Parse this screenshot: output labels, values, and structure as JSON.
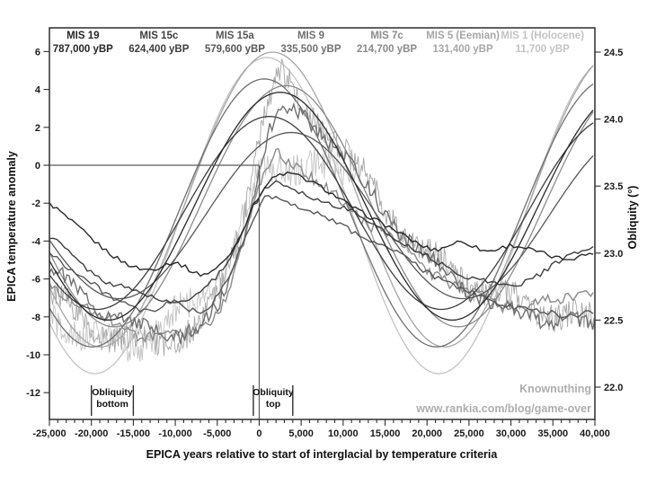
{
  "chart_data": {
    "type": "line",
    "title": "",
    "xlabel": "EPICA years relative to start of interglacial by temperature criteria",
    "ylabel_left": "EPICA temperature anomaly",
    "ylabel_right": "Obliquity (°)",
    "x_range": [
      -25000,
      40000
    ],
    "y_left_range": [
      -12,
      6
    ],
    "y_right_range": [
      22.0,
      24.5
    ],
    "x_minor_step": 1000,
    "grid": "off",
    "x_ticks": [
      {
        "v": -25000,
        "label": "-25,000"
      },
      {
        "v": -20000,
        "label": "-20,000"
      },
      {
        "v": -15000,
        "label": "-15,000"
      },
      {
        "v": -10000,
        "label": "-10,000"
      },
      {
        "v": -5000,
        "label": "-5,000"
      },
      {
        "v": 0,
        "label": "0"
      },
      {
        "v": 5000,
        "label": "5,000"
      },
      {
        "v": 10000,
        "label": "10,000"
      },
      {
        "v": 15000,
        "label": "15,000"
      },
      {
        "v": 20000,
        "label": "20,000"
      },
      {
        "v": 25000,
        "label": "25,000"
      },
      {
        "v": 30000,
        "label": "30,000"
      },
      {
        "v": 35000,
        "label": "35,000"
      },
      {
        "v": 40000,
        "label": "40,000"
      }
    ],
    "y_left_ticks": [
      {
        "v": 6,
        "label": "6"
      },
      {
        "v": 4,
        "label": "4"
      },
      {
        "v": 2,
        "label": "2"
      },
      {
        "v": 0,
        "label": "0"
      },
      {
        "v": -2,
        "label": "-2"
      },
      {
        "v": -4,
        "label": "-4"
      },
      {
        "v": -6,
        "label": "-6"
      },
      {
        "v": -8,
        "label": "-8"
      },
      {
        "v": -10,
        "label": "-10"
      },
      {
        "v": -12,
        "label": "-12"
      }
    ],
    "y_right_ticks": [
      {
        "v": 24.5,
        "label": "24.5"
      },
      {
        "v": 24.0,
        "label": "24.0"
      },
      {
        "v": 23.5,
        "label": "23.5"
      },
      {
        "v": 23.0,
        "label": "23.0"
      },
      {
        "v": 22.5,
        "label": "22.5"
      },
      {
        "v": 22.0,
        "label": "22.0"
      }
    ],
    "reference_lines": {
      "zero_temperature_y": 0,
      "interglacial_start_x": 0
    },
    "annotations": {
      "obliquity_bottom": {
        "line1": "Obliquity",
        "line2": "bottom",
        "x_range": [
          -20000,
          -15000
        ]
      },
      "obliquity_top": {
        "line1": "Obliquity",
        "line2": "top",
        "x_range": [
          -700,
          4000
        ]
      }
    },
    "watermark": {
      "line1": "Knownuthing",
      "line2": "www.rankia.com/blog/game-over"
    },
    "obliquity_period_years": 41000,
    "series": [
      {
        "name": "MIS 19",
        "date": "787,000 yBP",
        "color": "#282828",
        "noise": 0.12,
        "step": 450,
        "obliquity": {
          "mean": 23.35,
          "amplitude": 0.85,
          "peak_x": 2500
        },
        "temperature_points": [
          [
            -25000,
            -2.0
          ],
          [
            -22000,
            -3.1
          ],
          [
            -19000,
            -4.3
          ],
          [
            -16000,
            -5.1
          ],
          [
            -13000,
            -5.5
          ],
          [
            -10000,
            -5.2
          ],
          [
            -7000,
            -5.7
          ],
          [
            -4500,
            -5.2
          ],
          [
            -2500,
            -4.0
          ],
          [
            -500,
            -2.0
          ],
          [
            1500,
            -0.7
          ],
          [
            3500,
            -0.4
          ],
          [
            6000,
            -0.9
          ],
          [
            9000,
            -1.6
          ],
          [
            12000,
            -2.4
          ],
          [
            15000,
            -3.2
          ],
          [
            18000,
            -3.9
          ],
          [
            21000,
            -4.4
          ],
          [
            24000,
            -4.1
          ],
          [
            27000,
            -4.5
          ],
          [
            30000,
            -4.2
          ],
          [
            33000,
            -4.6
          ],
          [
            36000,
            -4.9
          ],
          [
            40000,
            -4.6
          ]
        ]
      },
      {
        "name": "MIS 15c",
        "date": "624,400 yBP",
        "color": "#3e3e3e",
        "noise": 0.13,
        "step": 450,
        "obliquity": {
          "mean": 23.3,
          "amplitude": 0.72,
          "peak_x": 1200
        },
        "temperature_points": [
          [
            -25000,
            -3.8
          ],
          [
            -22000,
            -4.9
          ],
          [
            -19000,
            -5.9
          ],
          [
            -16000,
            -6.5
          ],
          [
            -13000,
            -6.9
          ],
          [
            -10000,
            -7.2
          ],
          [
            -7000,
            -6.7
          ],
          [
            -4500,
            -5.6
          ],
          [
            -2500,
            -3.9
          ],
          [
            -500,
            -2.0
          ],
          [
            1500,
            -1.0
          ],
          [
            3500,
            -1.2
          ],
          [
            6000,
            -1.6
          ],
          [
            9000,
            -2.1
          ],
          [
            12000,
            -2.7
          ],
          [
            15000,
            -3.5
          ],
          [
            18000,
            -4.3
          ],
          [
            21000,
            -5.1
          ],
          [
            24000,
            -5.7
          ],
          [
            27000,
            -6.1
          ],
          [
            30000,
            -6.4
          ],
          [
            33000,
            -5.8
          ],
          [
            36000,
            -5.0
          ],
          [
            40000,
            -4.4
          ]
        ]
      },
      {
        "name": "MIS 15a",
        "date": "579,600 yBP",
        "color": "#575757",
        "noise": 0.16,
        "step": 450,
        "obliquity": {
          "mean": 23.28,
          "amplitude": 0.62,
          "peak_x": 3800
        },
        "temperature_points": [
          [
            -25000,
            -4.6
          ],
          [
            -22000,
            -5.6
          ],
          [
            -19000,
            -6.6
          ],
          [
            -16000,
            -7.3
          ],
          [
            -13000,
            -7.7
          ],
          [
            -10000,
            -7.3
          ],
          [
            -7000,
            -7.7
          ],
          [
            -4500,
            -6.6
          ],
          [
            -2500,
            -4.8
          ],
          [
            -500,
            -2.8
          ],
          [
            1000,
            -1.6
          ],
          [
            3000,
            -1.9
          ],
          [
            5500,
            -2.3
          ],
          [
            8000,
            -2.8
          ],
          [
            11000,
            -3.4
          ],
          [
            14000,
            -4.1
          ],
          [
            17000,
            -4.8
          ],
          [
            20000,
            -5.6
          ],
          [
            23000,
            -6.3
          ],
          [
            26000,
            -6.9
          ],
          [
            29000,
            -7.3
          ],
          [
            32000,
            -7.6
          ],
          [
            36000,
            -7.9
          ],
          [
            40000,
            -7.7
          ]
        ]
      },
      {
        "name": "MIS 9",
        "date": "335,500 yBP",
        "color": "#707070",
        "noise": 0.4,
        "step": 260,
        "obliquity": {
          "mean": 23.3,
          "amplitude": 1.0,
          "peak_x": 600
        },
        "temperature_points": [
          [
            -25000,
            -5.5
          ],
          [
            -22000,
            -6.5
          ],
          [
            -19000,
            -7.5
          ],
          [
            -16000,
            -8.2
          ],
          [
            -13000,
            -8.7
          ],
          [
            -10000,
            -8.9
          ],
          [
            -7000,
            -8.5
          ],
          [
            -4500,
            -7.2
          ],
          [
            -2500,
            -4.8
          ],
          [
            -1000,
            -2.0
          ],
          [
            500,
            0.8
          ],
          [
            2000,
            2.4
          ],
          [
            3500,
            2.9
          ],
          [
            5000,
            2.7
          ],
          [
            7000,
            2.0
          ],
          [
            9000,
            1.0
          ],
          [
            11000,
            -0.1
          ],
          [
            13000,
            -1.3
          ],
          [
            15000,
            -2.5
          ],
          [
            17500,
            -3.8
          ],
          [
            20000,
            -4.9
          ],
          [
            23000,
            -6.0
          ],
          [
            26000,
            -6.9
          ],
          [
            29000,
            -7.5
          ],
          [
            32000,
            -7.9
          ],
          [
            36000,
            -8.2
          ],
          [
            40000,
            -8.4
          ]
        ]
      },
      {
        "name": "MIS 7c",
        "date": "214,700 yBP",
        "color": "#8b8b8b",
        "noise": 0.3,
        "step": 300,
        "obliquity": {
          "mean": 23.35,
          "amplitude": 0.9,
          "peak_x": 3200
        },
        "temperature_points": [
          [
            -25000,
            -6.2
          ],
          [
            -22000,
            -7.1
          ],
          [
            -19000,
            -8.0
          ],
          [
            -16000,
            -8.6
          ],
          [
            -13000,
            -9.0
          ],
          [
            -10000,
            -9.1
          ],
          [
            -7000,
            -8.6
          ],
          [
            -4500,
            -7.4
          ],
          [
            -2500,
            -5.2
          ],
          [
            -1000,
            -2.8
          ],
          [
            500,
            -0.6
          ],
          [
            2000,
            0.7
          ],
          [
            3500,
            0.3
          ],
          [
            5500,
            -0.5
          ],
          [
            8000,
            -1.3
          ],
          [
            10500,
            -2.1
          ],
          [
            13000,
            -3.0
          ],
          [
            16000,
            -4.1
          ],
          [
            19000,
            -5.1
          ],
          [
            22000,
            -6.0
          ],
          [
            25000,
            -6.7
          ],
          [
            28000,
            -7.2
          ],
          [
            31000,
            -7.5
          ],
          [
            34000,
            -7.3
          ],
          [
            37000,
            -6.9
          ],
          [
            40000,
            -6.6
          ]
        ]
      },
      {
        "name": "MIS 5 (Eemian)",
        "date": "131,400 yBP",
        "color": "#a6a6a6",
        "noise": 0.75,
        "step": 130,
        "obliquity": {
          "mean": 23.4,
          "amplitude": 1.1,
          "peak_x": 1600
        },
        "temperature_points": [
          [
            -25000,
            -7.0
          ],
          [
            -22000,
            -7.8
          ],
          [
            -19000,
            -8.6
          ],
          [
            -16000,
            -9.2
          ],
          [
            -13000,
            -9.4
          ],
          [
            -11000,
            -9.2
          ],
          [
            -9000,
            -8.8
          ],
          [
            -7000,
            -8.2
          ],
          [
            -5000,
            -7.0
          ],
          [
            -3000,
            -4.6
          ],
          [
            -1500,
            -1.8
          ],
          [
            0,
            1.6
          ],
          [
            1500,
            3.9
          ],
          [
            2600,
            4.6
          ],
          [
            3600,
            4.1
          ],
          [
            5000,
            3.3
          ],
          [
            7000,
            2.3
          ],
          [
            9000,
            1.3
          ],
          [
            11000,
            0.2
          ],
          [
            13000,
            -1.0
          ],
          [
            15000,
            -2.2
          ],
          [
            17000,
            -3.3
          ],
          [
            19000,
            -4.3
          ],
          [
            21000,
            -5.1
          ],
          [
            24000,
            -5.9
          ],
          [
            27000,
            -6.5
          ],
          [
            30000,
            -7.1
          ],
          [
            33000,
            -7.5
          ],
          [
            36000,
            -7.9
          ],
          [
            40000,
            -8.3
          ]
        ]
      },
      {
        "name": "MIS 1 (Holocene)",
        "date": "11,700 yBP",
        "color": "#c3c3c3",
        "noise": 0.85,
        "step": 130,
        "obliquity": {
          "mean": 23.28,
          "amplitude": 1.18,
          "peak_x": 900
        },
        "temperature_points": [
          [
            -25000,
            -8.0
          ],
          [
            -22500,
            -8.6
          ],
          [
            -20000,
            -9.1
          ],
          [
            -17500,
            -9.4
          ],
          [
            -15000,
            -9.3
          ],
          [
            -13000,
            -9.0
          ],
          [
            -11000,
            -8.4
          ],
          [
            -9000,
            -7.7
          ],
          [
            -7000,
            -6.9
          ],
          [
            -5000,
            -6.0
          ],
          [
            -3500,
            -4.9
          ],
          [
            -2000,
            -3.2
          ],
          [
            -500,
            -1.2
          ],
          [
            1000,
            -0.3
          ],
          [
            3000,
            0.2
          ],
          [
            5000,
            0.0
          ],
          [
            7000,
            -0.2
          ],
          [
            9000,
            -0.4
          ],
          [
            11700,
            -0.6
          ]
        ]
      }
    ]
  }
}
